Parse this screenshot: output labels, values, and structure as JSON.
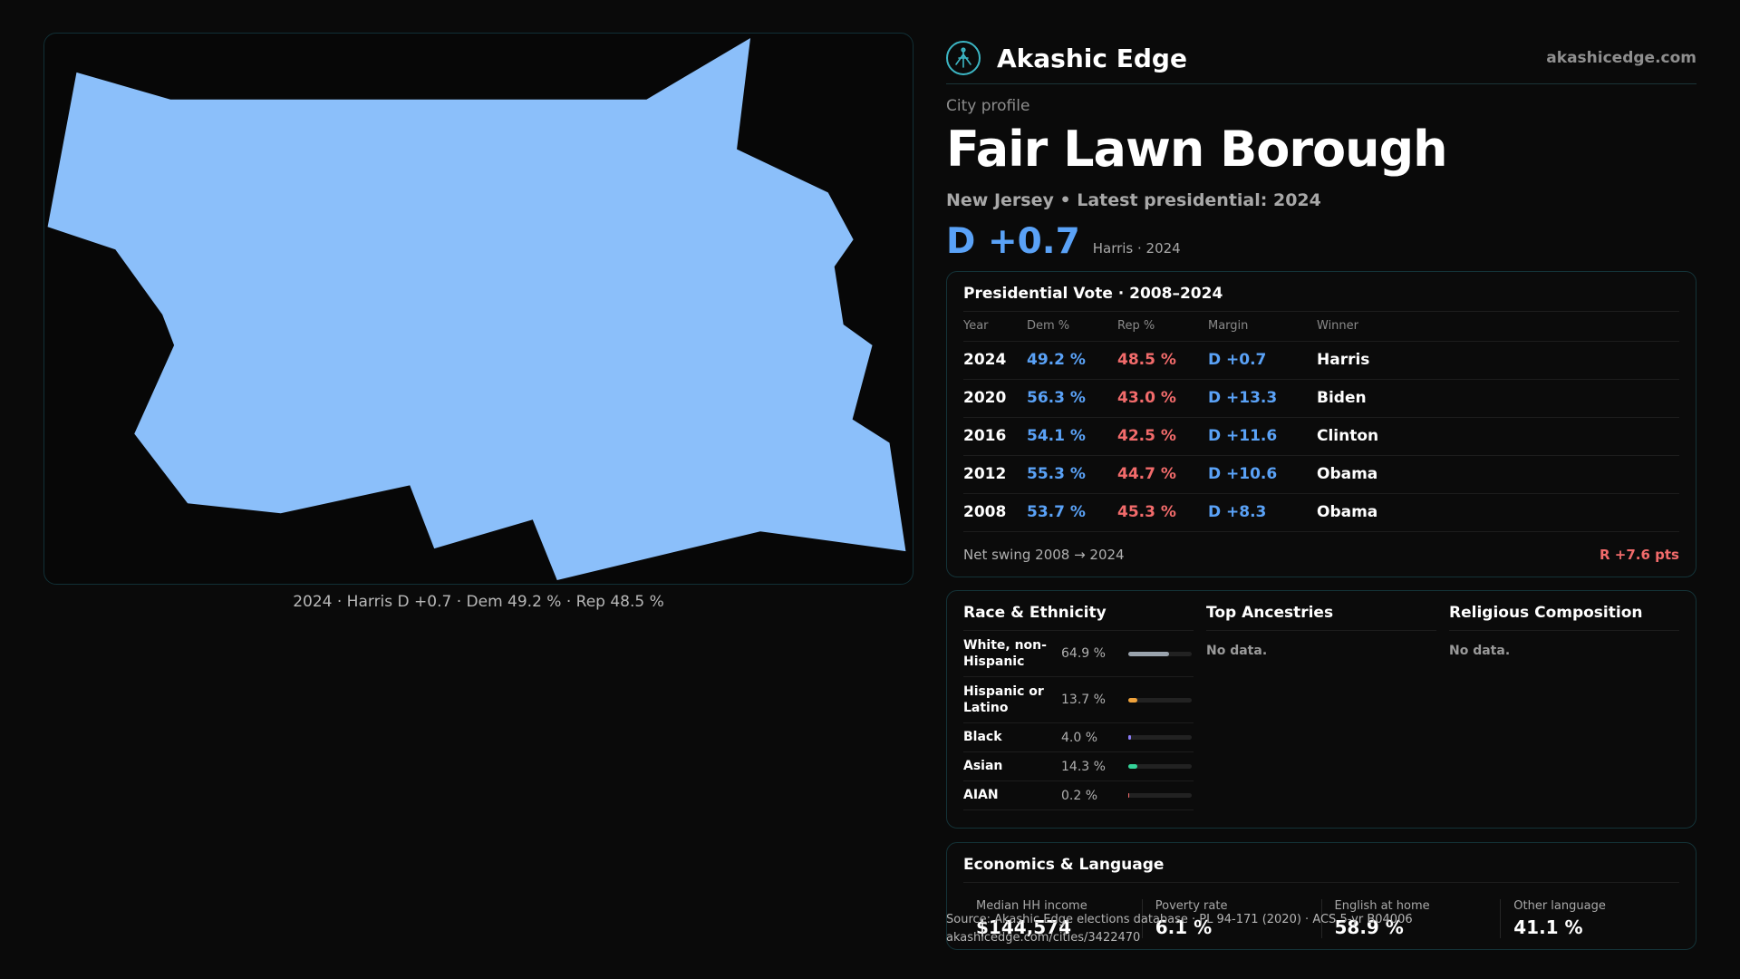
{
  "brand": {
    "name": "Akashic Edge",
    "url": "akashicedge.com"
  },
  "map": {
    "fill_color": "#8bbffa",
    "caption": "2024 · Harris D +0.7 · Dem 49.2 % · Rep 48.5 %"
  },
  "profile": {
    "eyebrow": "City profile",
    "city": "Fair Lawn Borough",
    "subtitle": "New Jersey • Latest presidential: 2024",
    "headline_margin": "D +0.7",
    "headline_note": "Harris · 2024"
  },
  "presidential": {
    "title": "Presidential Vote · 2008–2024",
    "headers": [
      "Year",
      "Dem %",
      "Rep %",
      "Margin",
      "Winner"
    ],
    "rows": [
      {
        "year": "2024",
        "dem": "49.2 %",
        "rep": "48.5 %",
        "margin": "D +0.7",
        "winner": "Harris"
      },
      {
        "year": "2020",
        "dem": "56.3 %",
        "rep": "43.0 %",
        "margin": "D +13.3",
        "winner": "Biden"
      },
      {
        "year": "2016",
        "dem": "54.1 %",
        "rep": "42.5 %",
        "margin": "D +11.6",
        "winner": "Clinton"
      },
      {
        "year": "2012",
        "dem": "55.3 %",
        "rep": "44.7 %",
        "margin": "D +10.6",
        "winner": "Obama"
      },
      {
        "year": "2008",
        "dem": "53.7 %",
        "rep": "45.3 %",
        "margin": "D +8.3",
        "winner": "Obama"
      }
    ],
    "swing_label": "Net swing 2008 → 2024",
    "swing_value": "R +7.6 pts"
  },
  "race": {
    "title": "Race & Ethnicity",
    "rows": [
      {
        "name": "White, non-Hispanic",
        "pct": "64.9 %",
        "value": 64.9,
        "color": "#9aa3ad"
      },
      {
        "name": "Hispanic or Latino",
        "pct": "13.7 %",
        "value": 13.7,
        "color": "#f0a23b"
      },
      {
        "name": "Black",
        "pct": "4.0 %",
        "value": 4.0,
        "color": "#8b7cf6"
      },
      {
        "name": "Asian",
        "pct": "14.3 %",
        "value": 14.3,
        "color": "#34d399"
      },
      {
        "name": "AIAN",
        "pct": "0.2 %",
        "value": 0.2,
        "color": "#f26b6b"
      }
    ]
  },
  "ancestries": {
    "title": "Top Ancestries",
    "empty": "No data."
  },
  "religion": {
    "title": "Religious Composition",
    "empty": "No data."
  },
  "economics": {
    "title": "Economics & Language",
    "items": [
      {
        "label": "Median HH income",
        "value": "$144,574"
      },
      {
        "label": "Poverty rate",
        "value": "6.1 %"
      },
      {
        "label": "English at home",
        "value": "58.9 %"
      },
      {
        "label": "Other language",
        "value": "41.1 %"
      }
    ]
  },
  "footer": {
    "source": "Source: Akashic Edge elections database · PL 94-171 (2020) · ACS 5-yr B04006",
    "url": "akashicedge.com/cities/3422470"
  }
}
